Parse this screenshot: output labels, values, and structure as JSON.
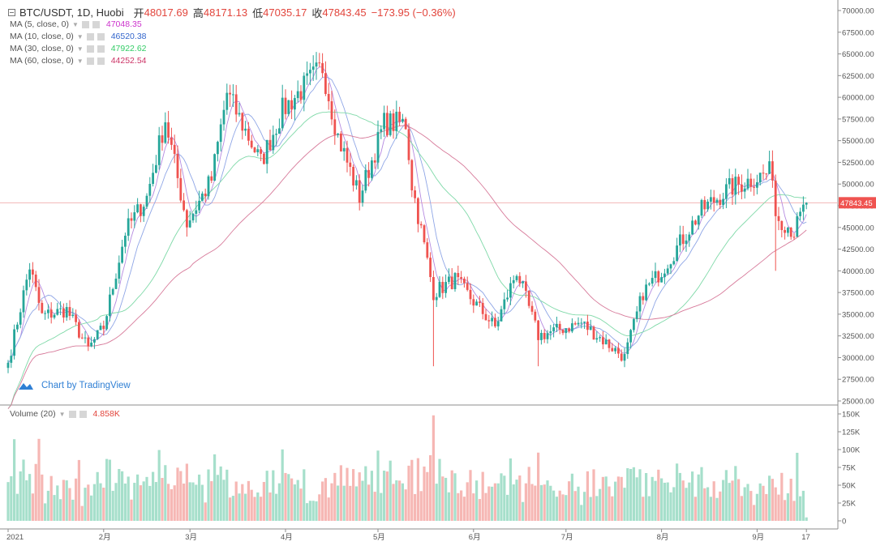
{
  "header": {
    "symbol": "BTC/USDT, 1D, Huobi",
    "open_label": "开",
    "open_value": "48017.69",
    "high_label": "高",
    "high_value": "48171.13",
    "low_label": "低",
    "low_value": "47035.17",
    "close_label": "收",
    "close_value": "47843.45",
    "change": "−173.95 (−0.36%)"
  },
  "indicators": [
    {
      "label": "MA (5, close, 0)",
      "value": "47048.35",
      "color": "#cc33cc"
    },
    {
      "label": "MA (10, close, 0)",
      "value": "46520.38",
      "color": "#3366cc"
    },
    {
      "label": "MA (30, close, 0)",
      "value": "47922.62",
      "color": "#33cc66"
    },
    {
      "label": "MA (60, close, 0)",
      "value": "44252.54",
      "color": "#cc3366"
    }
  ],
  "volume_label": "Volume (20)",
  "volume_value": "4.858K",
  "attribution": "Chart by TradingView",
  "last_price_tag": "47843.45",
  "colors": {
    "up": "#26a69a",
    "down": "#ef5350",
    "up_volume": "#a6dfcb",
    "down_volume": "#f6b7b4",
    "price_line": "#f3b6b6"
  },
  "chart_data": [
    {
      "type": "candlestick",
      "title": "BTC/USDT, 1D, Huobi",
      "x_tick_labels": [
        "2021",
        "2月",
        "3月",
        "4月",
        "5月",
        "6月",
        "7月",
        "8月",
        "9月",
        "17"
      ],
      "y_tick_labels": [
        "25000.00",
        "27500.00",
        "30000.00",
        "32500.00",
        "35000.00",
        "37500.00",
        "40000.00",
        "42500.00",
        "45000.00",
        "47500.00",
        "50000.00",
        "52500.00",
        "55000.00",
        "57500.00",
        "60000.00",
        "62500.00",
        "65000.00",
        "67500.00",
        "70000.00"
      ],
      "ylim": [
        25000,
        70000
      ],
      "approx_close_path": [
        {
          "date": "2021-01-01",
          "close": 29400
        },
        {
          "date": "2021-01-08",
          "close": 40500
        },
        {
          "date": "2021-01-12",
          "close": 34800
        },
        {
          "date": "2021-01-20",
          "close": 35500
        },
        {
          "date": "2021-01-27",
          "close": 31000
        },
        {
          "date": "2021-02-01",
          "close": 33500
        },
        {
          "date": "2021-02-08",
          "close": 44500
        },
        {
          "date": "2021-02-15",
          "close": 48500
        },
        {
          "date": "2021-02-21",
          "close": 57500
        },
        {
          "date": "2021-02-28",
          "close": 45500
        },
        {
          "date": "2021-03-08",
          "close": 50500
        },
        {
          "date": "2021-03-13",
          "close": 60500
        },
        {
          "date": "2021-03-24",
          "close": 52500
        },
        {
          "date": "2021-03-31",
          "close": 58500
        },
        {
          "date": "2021-04-13",
          "close": 63500
        },
        {
          "date": "2021-04-18",
          "close": 55500
        },
        {
          "date": "2021-04-25",
          "close": 48500
        },
        {
          "date": "2021-05-03",
          "close": 57000
        },
        {
          "date": "2021-05-10",
          "close": 57000
        },
        {
          "date": "2021-05-12",
          "close": 50000
        },
        {
          "date": "2021-05-19",
          "close": 37500
        },
        {
          "date": "2021-05-26",
          "close": 39000
        },
        {
          "date": "2021-06-08",
          "close": 33500
        },
        {
          "date": "2021-06-15",
          "close": 40000
        },
        {
          "date": "2021-06-22",
          "close": 32500
        },
        {
          "date": "2021-07-06",
          "close": 34000
        },
        {
          "date": "2021-07-20",
          "close": 30000
        },
        {
          "date": "2021-07-26",
          "close": 37500
        },
        {
          "date": "2021-08-01",
          "close": 40000
        },
        {
          "date": "2021-08-14",
          "close": 47000
        },
        {
          "date": "2021-08-23",
          "close": 49500
        },
        {
          "date": "2021-09-06",
          "close": 51500
        },
        {
          "date": "2021-09-07",
          "close": 46500
        },
        {
          "date": "2021-09-13",
          "close": 44500
        },
        {
          "date": "2021-09-17",
          "close": 47843.45
        }
      ]
    },
    {
      "type": "bar",
      "title": "Volume (20)",
      "y_tick_labels": [
        "0",
        "25K",
        "50K",
        "75K",
        "100K",
        "125K",
        "150K"
      ],
      "ylim": [
        0,
        150000
      ]
    }
  ]
}
